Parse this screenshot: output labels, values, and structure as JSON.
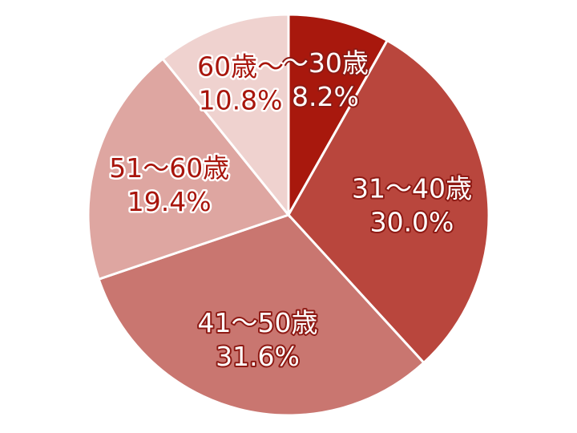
{
  "chart_data": {
    "type": "pie",
    "start": "top",
    "direction": "clockwise",
    "categories": [
      "～30歳",
      "31～40歳",
      "41～50歳",
      "51～60歳",
      "60歳～"
    ],
    "values": [
      8.2,
      30.0,
      31.6,
      19.4,
      10.8
    ],
    "value_labels": [
      "8.2%",
      "30.0%",
      "31.6%",
      "19.4%",
      "10.8%"
    ],
    "colors": [
      "#a8180d",
      "#b9463d",
      "#c97670",
      "#dea6a1",
      "#efd2cf"
    ],
    "label_styles": [
      "on-dark",
      "on-dark",
      "on-dark",
      "on-light",
      "on-light"
    ]
  }
}
